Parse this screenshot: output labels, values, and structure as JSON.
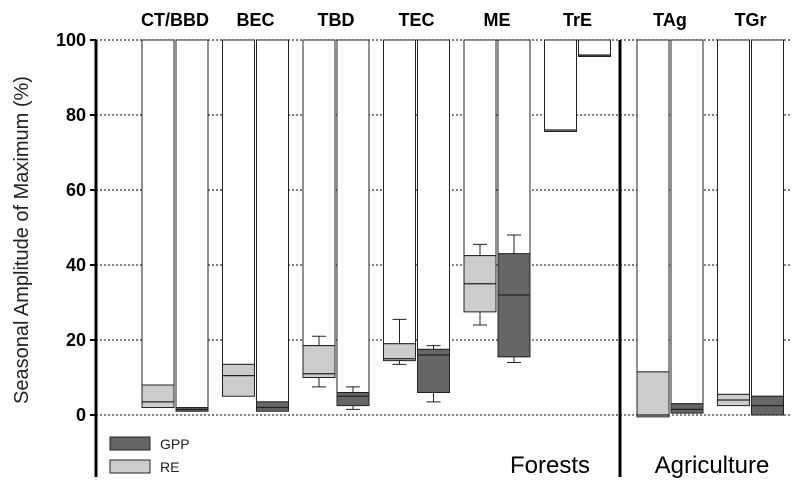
{
  "chart_data": {
    "type": "box",
    "ylabel": "Seasonal Amplitude of Maximum (%)",
    "ylim": [
      -20,
      100
    ],
    "yticks": [
      0,
      20,
      40,
      60,
      80,
      100
    ],
    "grid": true,
    "legend": {
      "placement": "bottom-left",
      "entries": [
        {
          "name": "GPP",
          "color": "#666666"
        },
        {
          "name": "RE",
          "color": "#cccccc"
        }
      ]
    },
    "group_labels": [
      {
        "text": "Forests",
        "categories": [
          "CT/BBD",
          "BEC",
          "TBD",
          "TEC",
          "ME",
          "TrE"
        ]
      },
      {
        "text": "Agriculture",
        "categories": [
          "TAg",
          "TGr"
        ]
      }
    ],
    "categories": [
      "CT/BBD",
      "BEC",
      "TBD",
      "TEC",
      "ME",
      "TrE",
      "TAg",
      "TGr"
    ],
    "series": [
      {
        "name": "RE",
        "color": "#cccccc",
        "boxes": [
          {
            "q1": 2,
            "median": 3.5,
            "q3": 8
          },
          {
            "q1": 5,
            "median": 10.5,
            "q3": 13.5
          },
          {
            "q1": 10,
            "median": 11,
            "q3": 18.5,
            "whisker_low": 7.5,
            "whisker_high": 21
          },
          {
            "q1": 14.5,
            "median": 15,
            "q3": 19,
            "whisker_low": 13.5,
            "whisker_high": 25.5
          },
          {
            "q1": 27.5,
            "median": 35,
            "q3": 42.5,
            "whisker_low": 24,
            "whisker_high": 45.5
          },
          {
            "q1": 76,
            "median": 76,
            "q3": 76
          },
          {
            "q1": -0.5,
            "median": 0,
            "q3": 11.5
          },
          {
            "q1": 2.5,
            "median": 4,
            "q3": 5.5
          }
        ]
      },
      {
        "name": "GPP",
        "color": "#666666",
        "boxes": [
          {
            "q1": 1,
            "median": 1.5,
            "q3": 2
          },
          {
            "q1": 1,
            "median": 2,
            "q3": 3.5
          },
          {
            "q1": 2.5,
            "median": 5,
            "q3": 6,
            "whisker_low": 1.5,
            "whisker_high": 7.5
          },
          {
            "q1": 6,
            "median": 16,
            "q3": 17.5,
            "whisker_low": 3.5,
            "whisker_high": 18.5
          },
          {
            "q1": 15.5,
            "median": 32,
            "q3": 43,
            "whisker_low": 14,
            "whisker_high": 48
          },
          {
            "q1": 96,
            "median": 96,
            "q3": 96
          },
          {
            "q1": 0.5,
            "median": 1.5,
            "q3": 3
          },
          {
            "q1": 0,
            "median": 2.5,
            "q3": 5
          }
        ]
      }
    ]
  }
}
